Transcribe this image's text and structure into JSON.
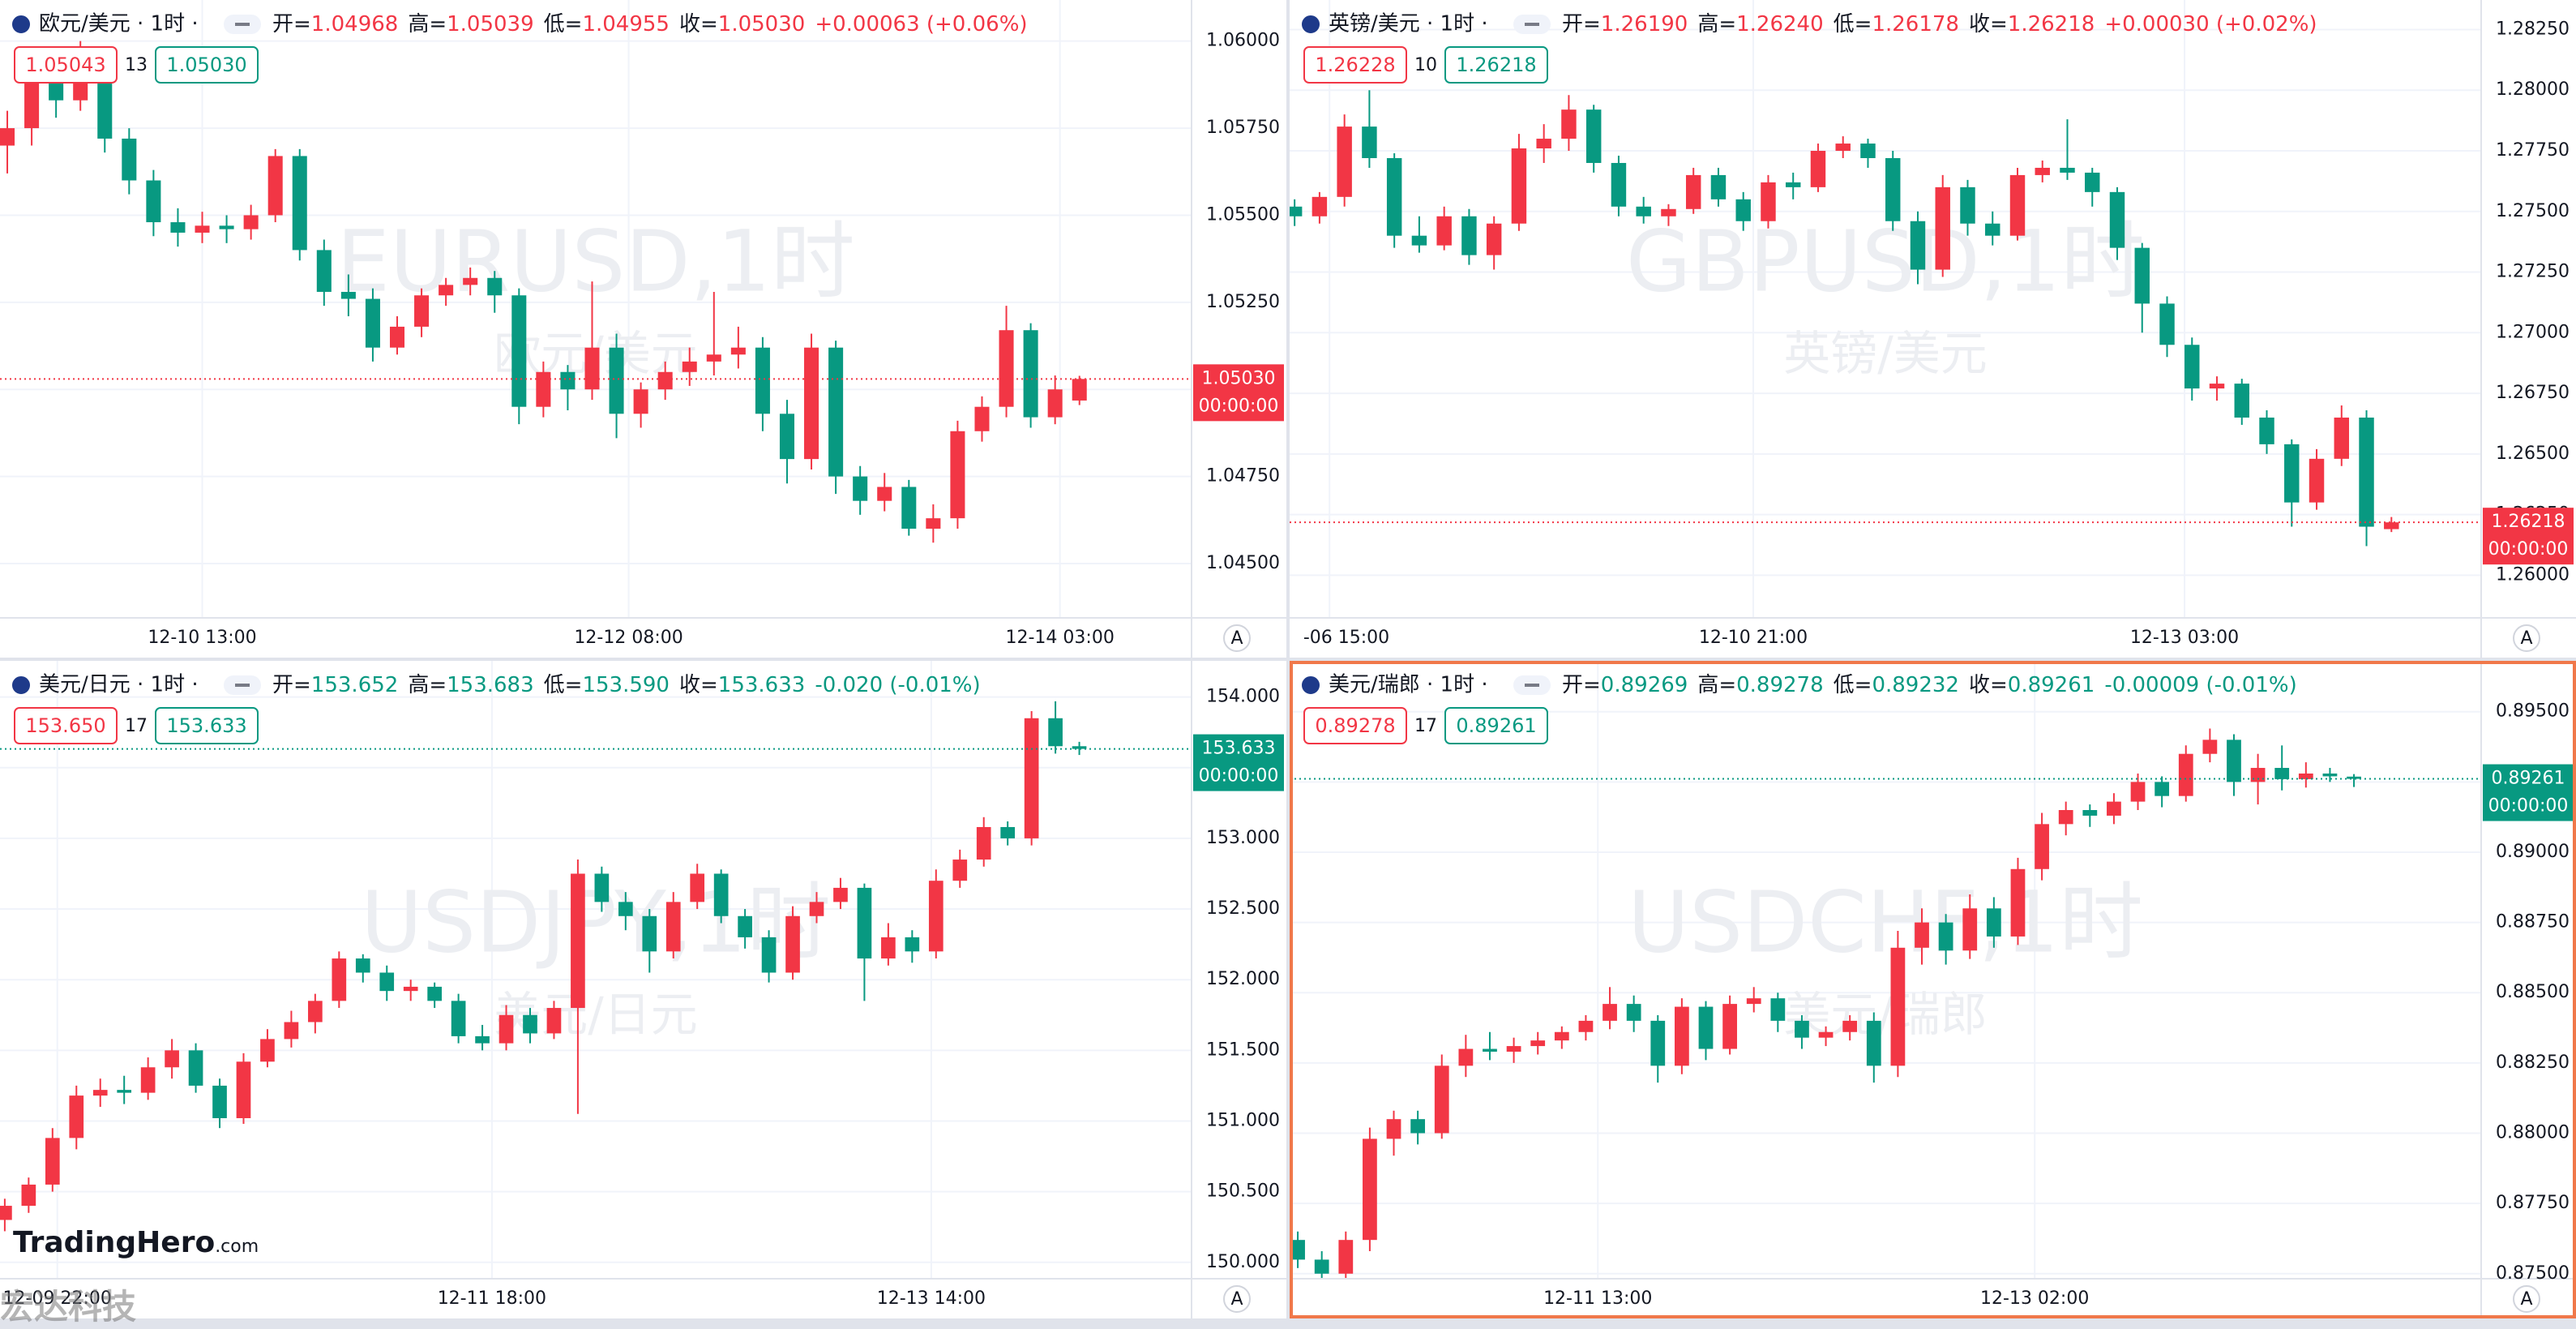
{
  "chart_data": [
    {
      "type": "candlestick",
      "symbol": "欧元/美元 · 1时 ·",
      "open_label": "开=",
      "high_label": "高=",
      "low_label": "低=",
      "close_label": "收=",
      "header_open": "1.04968",
      "header_high": "1.05039",
      "header_low": "1.04955",
      "header_close": "1.05030",
      "header_change": "+0.00063 (+0.06%)",
      "bid": "1.05043",
      "spread": "13",
      "ask": "1.05030",
      "watermark": "EURUSD,1时",
      "watermark_sub": "欧元/美元",
      "last_price": "1.05030",
      "countdown": "00:00:00",
      "axis_button": "A",
      "up_color": "#f23645",
      "down_color": "#089981",
      "grid": true,
      "open": [
        1.057,
        1.0575,
        1.0588,
        1.0583,
        1.0595,
        1.0572,
        1.056,
        1.0548,
        1.0545,
        1.0547,
        1.0546,
        1.055,
        1.0567,
        1.054,
        1.0528,
        1.0526,
        1.0512,
        1.0518,
        1.0527,
        1.053,
        1.0532,
        1.0527,
        1.0495,
        1.0505,
        1.05,
        1.0512,
        1.0493,
        1.05,
        1.0505,
        1.0508,
        1.051,
        1.0512,
        1.0493,
        1.048,
        1.0512,
        1.0475,
        1.0468,
        1.0472,
        1.046,
        1.0463,
        1.0488,
        1.0495,
        1.0517,
        1.0492,
        1.04968
      ],
      "high": [
        1.058,
        1.0592,
        1.0591,
        1.06,
        1.0597,
        1.0575,
        1.0563,
        1.0552,
        1.0551,
        1.055,
        1.0553,
        1.0569,
        1.0569,
        1.0543,
        1.0533,
        1.0529,
        1.0521,
        1.0529,
        1.0532,
        1.0535,
        1.0534,
        1.0529,
        1.0508,
        1.0507,
        1.0531,
        1.0516,
        1.0502,
        1.0508,
        1.0512,
        1.0528,
        1.0518,
        1.0515,
        1.0497,
        1.0516,
        1.0514,
        1.0478,
        1.0476,
        1.0474,
        1.0467,
        1.0491,
        1.0498,
        1.0524,
        1.0519,
        1.0504,
        1.05039
      ],
      "low": [
        1.0562,
        1.057,
        1.0578,
        1.058,
        1.0568,
        1.0556,
        1.0544,
        1.0541,
        1.0542,
        1.0542,
        1.0543,
        1.0548,
        1.0537,
        1.0524,
        1.0521,
        1.0508,
        1.051,
        1.0515,
        1.0524,
        1.0527,
        1.0522,
        1.049,
        1.0492,
        1.0494,
        1.0497,
        1.0486,
        1.0489,
        1.0497,
        1.0501,
        1.0504,
        1.0506,
        1.0488,
        1.0473,
        1.0477,
        1.047,
        1.0464,
        1.0465,
        1.0458,
        1.0456,
        1.046,
        1.0485,
        1.0492,
        1.0489,
        1.049,
        1.04955
      ],
      "close": [
        1.0575,
        1.0588,
        1.0583,
        1.0595,
        1.0572,
        1.056,
        1.0548,
        1.0545,
        1.0547,
        1.0546,
        1.055,
        1.0567,
        1.054,
        1.0528,
        1.0526,
        1.0512,
        1.0518,
        1.0527,
        1.053,
        1.0532,
        1.0527,
        1.0495,
        1.0505,
        1.05,
        1.0512,
        1.0493,
        1.05,
        1.0505,
        1.0508,
        1.051,
        1.0512,
        1.0493,
        1.048,
        1.0512,
        1.0475,
        1.0468,
        1.0472,
        1.046,
        1.0463,
        1.0488,
        1.0495,
        1.0517,
        1.0492,
        1.05,
        1.0503
      ],
      "xlim": [
        -0.3,
        48.6
      ],
      "xticks": [
        {
          "value": 8,
          "label": "12-10 13:00"
        },
        {
          "value": 25.5,
          "label": "12-12 08:00"
        },
        {
          "value": 43.2,
          "label": "12-14 03:00"
        }
      ],
      "ylim": [
        1.04344,
        1.06118
      ],
      "yticks": [
        {
          "value": 1.045,
          "label": "1.04500"
        },
        {
          "value": 1.0475,
          "label": "1.04750"
        },
        {
          "value": 1.05,
          "label": "1.05000"
        },
        {
          "value": 1.0525,
          "label": "1.05250"
        },
        {
          "value": 1.055,
          "label": "1.05500"
        },
        {
          "value": 1.0575,
          "label": "1.05750"
        },
        {
          "value": 1.06,
          "label": "1.06000"
        }
      ]
    },
    {
      "type": "candlestick",
      "symbol": "英镑/美元 · 1时 ·",
      "open_label": "开=",
      "high_label": "高=",
      "low_label": "低=",
      "close_label": "收=",
      "header_open": "1.26190",
      "header_high": "1.26240",
      "header_low": "1.26178",
      "header_close": "1.26218",
      "header_change": "+0.00030 (+0.02%)",
      "bid": "1.26228",
      "spread": "10",
      "ask": "1.26218",
      "watermark": "GBPUSD,1时",
      "watermark_sub": "英镑/美元",
      "last_price": "1.26218",
      "countdown": "00:00:00",
      "axis_button": "A",
      "up_color": "#f23645",
      "down_color": "#089981",
      "grid": true,
      "open": [
        1.2752,
        1.2748,
        1.2756,
        1.2785,
        1.2772,
        1.274,
        1.2736,
        1.2748,
        1.2732,
        1.2745,
        1.2776,
        1.278,
        1.2792,
        1.277,
        1.2752,
        1.2748,
        1.2751,
        1.2765,
        1.2755,
        1.2746,
        1.2762,
        1.276,
        1.2775,
        1.2778,
        1.2772,
        1.2746,
        1.2726,
        1.276,
        1.2745,
        1.274,
        1.2765,
        1.2768,
        1.2766,
        1.2758,
        1.2735,
        1.2712,
        1.2695,
        1.2677,
        1.2679,
        1.2665,
        1.2654,
        1.263,
        1.2648,
        1.2665,
        1.2619
      ],
      "high": [
        1.2755,
        1.2758,
        1.279,
        1.28,
        1.2774,
        1.2748,
        1.2752,
        1.2751,
        1.2748,
        1.2782,
        1.2786,
        1.2798,
        1.2794,
        1.2773,
        1.2756,
        1.2753,
        1.2768,
        1.2768,
        1.2758,
        1.2765,
        1.2766,
        1.2778,
        1.2781,
        1.278,
        1.2775,
        1.275,
        1.2765,
        1.2763,
        1.275,
        1.2768,
        1.2771,
        1.2788,
        1.2768,
        1.276,
        1.2737,
        1.2715,
        1.2698,
        1.2682,
        1.2681,
        1.2668,
        1.2656,
        1.2652,
        1.267,
        1.2668,
        1.2624
      ],
      "low": [
        1.2744,
        1.2745,
        1.2752,
        1.2768,
        1.2735,
        1.2733,
        1.2734,
        1.2728,
        1.2726,
        1.2742,
        1.277,
        1.2775,
        1.2766,
        1.2748,
        1.2745,
        1.2744,
        1.2749,
        1.2752,
        1.2742,
        1.2743,
        1.2755,
        1.2758,
        1.2772,
        1.2768,
        1.2742,
        1.272,
        1.2723,
        1.274,
        1.2736,
        1.2738,
        1.2762,
        1.2763,
        1.2752,
        1.273,
        1.27,
        1.269,
        1.2672,
        1.2672,
        1.2662,
        1.265,
        1.262,
        1.2627,
        1.2645,
        1.2612,
        1.26178
      ],
      "close": [
        1.2748,
        1.2756,
        1.2785,
        1.2772,
        1.274,
        1.2736,
        1.2748,
        1.2732,
        1.2745,
        1.2776,
        1.278,
        1.2792,
        1.277,
        1.2752,
        1.2748,
        1.2751,
        1.2765,
        1.2755,
        1.2746,
        1.2762,
        1.276,
        1.2775,
        1.2778,
        1.2772,
        1.2746,
        1.2726,
        1.276,
        1.2745,
        1.274,
        1.2765,
        1.2768,
        1.2766,
        1.2758,
        1.2735,
        1.2712,
        1.2695,
        1.2677,
        1.2679,
        1.2665,
        1.2654,
        1.263,
        1.2648,
        1.2665,
        1.262,
        1.26218
      ],
      "xlim": [
        -0.2,
        47.6
      ],
      "xticks": [
        {
          "value": 1.4,
          "label": "-06 15:00"
        },
        {
          "value": 18.4,
          "label": "12-10 21:00"
        },
        {
          "value": 35.7,
          "label": "12-13 03:00"
        }
      ],
      "ylim": [
        1.25824,
        1.28372
      ],
      "yticks": [
        {
          "value": 1.26,
          "label": "1.26000"
        },
        {
          "value": 1.2625,
          "label": "1.26250"
        },
        {
          "value": 1.265,
          "label": "1.26500"
        },
        {
          "value": 1.2675,
          "label": "1.26750"
        },
        {
          "value": 1.27,
          "label": "1.27000"
        },
        {
          "value": 1.2725,
          "label": "1.27250"
        },
        {
          "value": 1.275,
          "label": "1.27500"
        },
        {
          "value": 1.2775,
          "label": "1.27750"
        },
        {
          "value": 1.28,
          "label": "1.28000"
        },
        {
          "value": 1.2825,
          "label": "1.28250"
        }
      ]
    },
    {
      "type": "candlestick",
      "symbol": "美元/日元 · 1时 ·",
      "open_label": "开=",
      "high_label": "高=",
      "low_label": "低=",
      "close_label": "收=",
      "header_open": "153.652",
      "header_high": "153.683",
      "header_low": "153.590",
      "header_close": "153.633",
      "header_change": "-0.020 (-0.01%)",
      "bid": "153.650",
      "spread": "17",
      "ask": "153.633",
      "watermark": "USDJPY,1时",
      "watermark_sub": "美元/日元",
      "last_price": "153.633",
      "countdown": "00:00:00",
      "axis_button": "A",
      "up_color": "#f23645",
      "down_color": "#089981",
      "grid": true,
      "open": [
        150.3,
        150.4,
        150.55,
        150.88,
        151.18,
        151.22,
        151.2,
        151.38,
        151.5,
        151.25,
        151.02,
        151.42,
        151.58,
        151.7,
        151.85,
        152.15,
        152.05,
        151.92,
        151.95,
        151.85,
        151.6,
        151.55,
        151.75,
        151.62,
        151.8,
        152.75,
        152.55,
        152.45,
        152.2,
        152.55,
        152.75,
        152.45,
        152.3,
        152.05,
        152.45,
        152.55,
        152.65,
        152.15,
        152.3,
        152.2,
        152.7,
        152.85,
        153.08,
        153.0,
        153.85,
        153.652
      ],
      "high": [
        150.45,
        150.6,
        150.95,
        151.25,
        151.3,
        151.32,
        151.45,
        151.58,
        151.55,
        151.3,
        151.48,
        151.65,
        151.78,
        151.9,
        152.2,
        152.18,
        152.1,
        152.0,
        151.98,
        151.9,
        151.68,
        151.82,
        151.8,
        151.85,
        152.85,
        152.8,
        152.62,
        152.5,
        152.62,
        152.82,
        152.78,
        152.5,
        152.35,
        152.52,
        152.62,
        152.72,
        152.68,
        152.4,
        152.35,
        152.78,
        152.92,
        153.15,
        153.12,
        153.9,
        153.97,
        153.683
      ],
      "low": [
        150.22,
        150.35,
        150.5,
        150.8,
        151.1,
        151.12,
        151.15,
        151.3,
        151.2,
        150.95,
        150.98,
        151.38,
        151.52,
        151.62,
        151.8,
        151.98,
        151.85,
        151.85,
        151.8,
        151.55,
        151.5,
        151.5,
        151.55,
        151.58,
        151.05,
        152.48,
        152.35,
        152.05,
        152.15,
        152.5,
        152.4,
        152.22,
        151.98,
        152.0,
        152.4,
        152.5,
        151.85,
        152.1,
        152.12,
        152.15,
        152.65,
        152.8,
        152.95,
        152.95,
        153.6,
        153.59
      ],
      "close": [
        150.4,
        150.55,
        150.88,
        151.18,
        151.22,
        151.2,
        151.38,
        151.5,
        151.25,
        151.02,
        151.42,
        151.58,
        151.7,
        151.85,
        152.15,
        152.05,
        151.92,
        151.95,
        151.85,
        151.6,
        151.55,
        151.75,
        151.62,
        151.8,
        152.75,
        152.55,
        152.45,
        152.2,
        152.55,
        152.75,
        152.45,
        152.3,
        152.05,
        152.45,
        152.55,
        152.65,
        152.15,
        152.3,
        152.2,
        152.7,
        152.85,
        153.08,
        153.0,
        153.85,
        153.652,
        153.633
      ],
      "xlim": [
        -0.2,
        49.7
      ],
      "xticks": [
        {
          "value": 2.2,
          "label": "12-09 22:00"
        },
        {
          "value": 20.4,
          "label": "12-11 18:00"
        },
        {
          "value": 38.8,
          "label": "12-13 14:00"
        }
      ],
      "ylim": [
        149.884,
        154.256
      ],
      "yticks": [
        {
          "value": 150,
          "label": "150.000"
        },
        {
          "value": 150.5,
          "label": "150.500"
        },
        {
          "value": 151,
          "label": "151.000"
        },
        {
          "value": 151.5,
          "label": "151.500"
        },
        {
          "value": 152,
          "label": "152.000"
        },
        {
          "value": 152.5,
          "label": "152.500"
        },
        {
          "value": 153,
          "label": "153.000"
        },
        {
          "value": 153.5,
          "label": "153.500"
        },
        {
          "value": 154,
          "label": "154.000"
        }
      ]
    },
    {
      "type": "candlestick",
      "symbol": "美元/瑞郎 · 1时 ·",
      "open_label": "开=",
      "high_label": "高=",
      "low_label": "低=",
      "close_label": "收=",
      "header_open": "0.89269",
      "header_high": "0.89278",
      "header_low": "0.89232",
      "header_close": "0.89261",
      "header_change": "-0.00009 (-0.01%)",
      "bid": "0.89278",
      "spread": "17",
      "ask": "0.89261",
      "watermark": "USDCHF,1时",
      "watermark_sub": "美元/瑞郎",
      "last_price": "0.89261",
      "countdown": "00:00:00",
      "axis_button": "A",
      "up_color": "#f23645",
      "down_color": "#089981",
      "grid": true,
      "active": true,
      "open": [
        0.8762,
        0.8755,
        0.875,
        0.8762,
        0.8798,
        0.8805,
        0.88,
        0.8824,
        0.883,
        0.8829,
        0.8831,
        0.8833,
        0.8836,
        0.884,
        0.8846,
        0.884,
        0.8824,
        0.8845,
        0.883,
        0.8846,
        0.8848,
        0.884,
        0.8834,
        0.8836,
        0.884,
        0.8824,
        0.8866,
        0.8875,
        0.8865,
        0.888,
        0.887,
        0.8894,
        0.891,
        0.8915,
        0.8913,
        0.8918,
        0.8925,
        0.892,
        0.8935,
        0.894,
        0.8925,
        0.893,
        0.8926,
        0.8928,
        0.89269
      ],
      "high": [
        0.8765,
        0.8758,
        0.8765,
        0.8802,
        0.8808,
        0.8808,
        0.8828,
        0.8835,
        0.8836,
        0.8834,
        0.8836,
        0.8838,
        0.8842,
        0.8852,
        0.8849,
        0.8842,
        0.8848,
        0.8847,
        0.8849,
        0.8852,
        0.885,
        0.8842,
        0.8838,
        0.8842,
        0.8843,
        0.8872,
        0.888,
        0.8878,
        0.8885,
        0.8884,
        0.8898,
        0.8914,
        0.8918,
        0.8917,
        0.8921,
        0.8928,
        0.8927,
        0.8938,
        0.8944,
        0.8942,
        0.8935,
        0.8938,
        0.8932,
        0.893,
        0.89278
      ],
      "low": [
        0.8752,
        0.8745,
        0.8747,
        0.8758,
        0.8792,
        0.8796,
        0.8798,
        0.882,
        0.8826,
        0.8825,
        0.8828,
        0.883,
        0.8833,
        0.8837,
        0.8836,
        0.8818,
        0.8821,
        0.8826,
        0.8828,
        0.8843,
        0.8836,
        0.883,
        0.8831,
        0.8833,
        0.8818,
        0.882,
        0.886,
        0.886,
        0.8862,
        0.8866,
        0.8867,
        0.889,
        0.8906,
        0.8909,
        0.891,
        0.8915,
        0.8916,
        0.8918,
        0.8932,
        0.892,
        0.8917,
        0.8922,
        0.8923,
        0.8925,
        0.89232
      ],
      "close": [
        0.8755,
        0.875,
        0.8762,
        0.8798,
        0.8805,
        0.88,
        0.8824,
        0.883,
        0.8829,
        0.8831,
        0.8833,
        0.8836,
        0.884,
        0.8846,
        0.884,
        0.8824,
        0.8845,
        0.883,
        0.8846,
        0.8848,
        0.884,
        0.8834,
        0.8836,
        0.884,
        0.8824,
        0.8866,
        0.8875,
        0.8865,
        0.888,
        0.887,
        0.8894,
        0.891,
        0.8915,
        0.8913,
        0.8918,
        0.8925,
        0.892,
        0.8935,
        0.894,
        0.8925,
        0.893,
        0.8926,
        0.8928,
        0.8927,
        0.89261
      ],
      "xlim": [
        -0.34,
        49.3
      ],
      "xticks": [
        {
          "value": 12.5,
          "label": "12-11 13:00"
        },
        {
          "value": 30.7,
          "label": "12-13 02:00"
        }
      ],
      "ylim": [
        0.87482,
        0.89681
      ],
      "yticks": [
        {
          "value": 0.875,
          "label": "0.87500"
        },
        {
          "value": 0.8775,
          "label": "0.87750"
        },
        {
          "value": 0.88,
          "label": "0.88000"
        },
        {
          "value": 0.8825,
          "label": "0.88250"
        },
        {
          "value": 0.885,
          "label": "0.88500"
        },
        {
          "value": 0.8875,
          "label": "0.88750"
        },
        {
          "value": 0.89,
          "label": "0.89000"
        },
        {
          "value": 0.8925,
          "label": "0.89250"
        },
        {
          "value": 0.895,
          "label": "0.89500"
        }
      ]
    }
  ],
  "logo": "TradingHero",
  "logo_suffix": ".com",
  "overlay": "宏达科技"
}
